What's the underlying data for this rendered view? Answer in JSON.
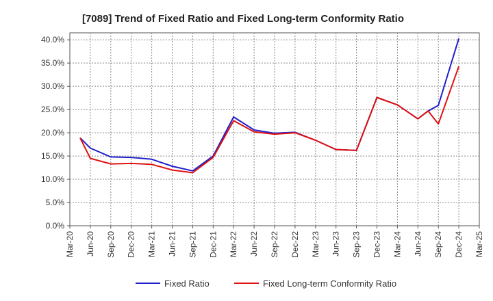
{
  "chart_data": {
    "type": "line",
    "title": "[7089]  Trend of Fixed Ratio and Fixed Long-term Conformity Ratio",
    "xlabel": "",
    "ylabel": "",
    "x_ticks": [
      "Mar-20",
      "Jun-20",
      "Sep-20",
      "Dec-20",
      "Mar-21",
      "Jun-21",
      "Sep-21",
      "Dec-21",
      "Mar-22",
      "Jun-22",
      "Sep-22",
      "Dec-22",
      "Mar-23",
      "Jun-23",
      "Sep-23",
      "Dec-23",
      "Mar-24",
      "Jun-24",
      "Sep-24",
      "Dec-24",
      "Mar-25"
    ],
    "y_ticks": [
      "0.0%",
      "5.0%",
      "10.0%",
      "15.0%",
      "20.0%",
      "25.0%",
      "30.0%",
      "35.0%",
      "40.0%"
    ],
    "ylim": [
      0,
      41.5
    ],
    "grid": true,
    "legend_position": "bottom",
    "series": [
      {
        "name": "Fixed Ratio",
        "color": "#1f1fcc",
        "x": [
          0.5,
          1,
          2,
          3,
          4,
          5,
          6,
          7,
          8,
          9,
          10,
          11,
          12,
          13,
          14,
          15,
          16,
          17,
          17.5,
          18,
          19
        ],
        "values": [
          18.9,
          16.7,
          14.8,
          14.7,
          14.3,
          12.8,
          11.8,
          15.0,
          23.4,
          20.6,
          19.9,
          20.1,
          18.4,
          16.4,
          16.2,
          27.6,
          26.0,
          23.0,
          24.7,
          25.9,
          40.3
        ]
      },
      {
        "name": "Fixed Long-term Conformity Ratio",
        "color": "#e01010",
        "x": [
          0.5,
          1,
          2,
          3,
          4,
          5,
          6,
          7,
          8,
          9,
          10,
          11,
          12,
          13,
          14,
          15,
          16,
          17,
          17.5,
          18,
          19
        ],
        "values": [
          18.9,
          14.5,
          13.3,
          13.4,
          13.2,
          12.0,
          11.4,
          14.7,
          22.6,
          20.2,
          19.7,
          20.0,
          18.4,
          16.4,
          16.2,
          27.6,
          26.0,
          23.0,
          24.7,
          21.9,
          34.3
        ]
      }
    ]
  }
}
